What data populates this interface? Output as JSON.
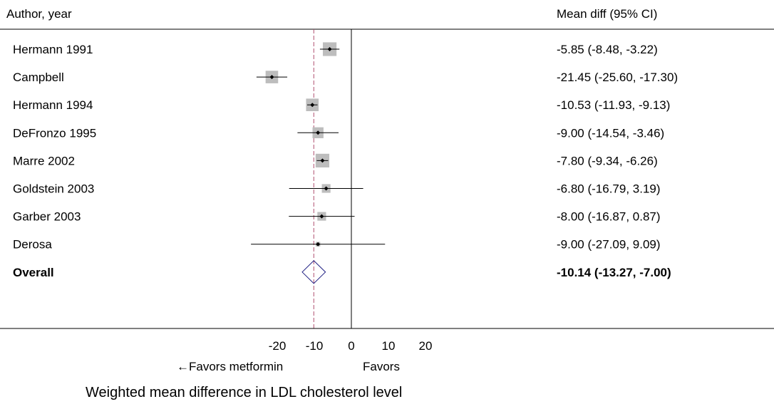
{
  "header": {
    "left": "Author, year",
    "right": "Mean diff (95% CI)"
  },
  "chart_data": {
    "type": "forest",
    "studies": [
      {
        "label": "Hermann 1991",
        "mean": -5.85,
        "lo": -8.48,
        "hi": -3.22,
        "weight_rel": 0.6,
        "ci_text": "-5.85 (-8.48, -3.22)"
      },
      {
        "label": "Campbell",
        "mean": -21.45,
        "lo": -25.6,
        "hi": -17.3,
        "weight_rel": 0.55,
        "ci_text": "-21.45 (-25.60, -17.30)"
      },
      {
        "label": "Hermann 1994",
        "mean": -10.53,
        "lo": -11.93,
        "hi": -9.13,
        "weight_rel": 0.55,
        "ci_text": "-10.53 (-11.93, -9.13)"
      },
      {
        "label": "DeFronzo 1995",
        "mean": -9.0,
        "lo": -14.54,
        "hi": -3.46,
        "weight_rel": 0.48,
        "ci_text": "-9.00 (-14.54, -3.46)"
      },
      {
        "label": "Marre 2002",
        "mean": -7.8,
        "lo": -9.34,
        "hi": -6.26,
        "weight_rel": 0.6,
        "ci_text": "-7.80 (-9.34, -6.26)"
      },
      {
        "label": "Goldstein 2003",
        "mean": -6.8,
        "lo": -16.79,
        "hi": 3.19,
        "weight_rel": 0.38,
        "ci_text": "-6.80 (-16.79, 3.19)"
      },
      {
        "label": "Garber 2003",
        "mean": -8.0,
        "lo": -16.87,
        "hi": 0.87,
        "weight_rel": 0.38,
        "ci_text": "-8.00 (-16.87, 0.87)"
      },
      {
        "label": "Derosa",
        "mean": -9.0,
        "lo": -27.09,
        "hi": 9.09,
        "weight_rel": 0.2,
        "ci_text": "-9.00 (-27.09, 9.09)"
      }
    ],
    "overall": {
      "label": "Overall",
      "mean": -10.14,
      "lo": -13.27,
      "hi": -7.0,
      "ci_text": "-10.14 (-13.27, -7.00)"
    },
    "x_ticks": [
      -20,
      -10,
      0,
      10,
      20
    ],
    "x_labels_under": [
      "←Favors metformin",
      "Favors"
    ],
    "xlabel": "Weighted mean difference in LDL cholesterol level",
    "null_line": 0,
    "pooled_line": -10.14,
    "colors": {
      "square": "#bdbdbd",
      "line": "#000000",
      "pooled_line": "#b05070",
      "diamond": "#1a1a80"
    }
  }
}
